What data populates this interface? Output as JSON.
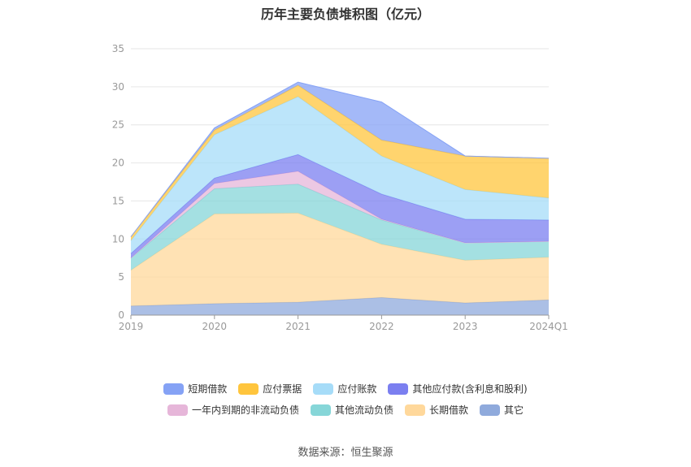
{
  "chart_data": {
    "type": "area",
    "title": "历年主要负债堆积图（亿元）",
    "categories": [
      "2019",
      "2020",
      "2021",
      "2022",
      "2023",
      "2024Q1"
    ],
    "ylim": [
      0,
      35
    ],
    "yticks": [
      0,
      5,
      10,
      15,
      20,
      25,
      30,
      35
    ],
    "stacked": true,
    "grid": true,
    "legend_position": "bottom",
    "series": [
      {
        "name": "其它",
        "color": "#8faadc",
        "values": [
          1.2,
          1.5,
          1.7,
          2.3,
          1.6,
          2.0
        ]
      },
      {
        "name": "长期借款",
        "color": "#ffd89b",
        "values": [
          4.7,
          11.8,
          11.7,
          7.0,
          5.6,
          5.6
        ]
      },
      {
        "name": "其他流动负债",
        "color": "#86d6d8",
        "values": [
          1.6,
          3.3,
          3.8,
          3.2,
          2.3,
          2.1
        ]
      },
      {
        "name": "一年内到期的非流动负债",
        "color": "#e6b6d9",
        "values": [
          0.0,
          0.7,
          1.7,
          0.1,
          0.0,
          0.0
        ]
      },
      {
        "name": "其他应付款(含利息和股利)",
        "color": "#7b7ff0",
        "values": [
          0.6,
          0.7,
          2.2,
          3.3,
          3.1,
          2.8
        ]
      },
      {
        "name": "应付账款",
        "color": "#a6dcf8",
        "values": [
          1.7,
          5.7,
          7.6,
          5.0,
          3.9,
          2.9
        ]
      },
      {
        "name": "应付票据",
        "color": "#ffc53d",
        "values": [
          0.5,
          0.6,
          1.5,
          2.1,
          4.4,
          5.2
        ]
      },
      {
        "name": "短期借款",
        "color": "#85a2f5",
        "values": [
          0.0,
          0.3,
          0.4,
          5.0,
          0.0,
          0.0
        ]
      }
    ]
  },
  "legend": {
    "row1": [
      {
        "label": "短期借款",
        "color": "#85a2f5"
      },
      {
        "label": "应付票据",
        "color": "#ffc53d"
      },
      {
        "label": "应付账款",
        "color": "#a6dcf8"
      },
      {
        "label": "其他应付款(含利息和股利)",
        "color": "#7b7ff0"
      }
    ],
    "row2": [
      {
        "label": "一年内到期的非流动负债",
        "color": "#e6b6d9"
      },
      {
        "label": "其他流动负债",
        "color": "#86d6d8"
      },
      {
        "label": "长期借款",
        "color": "#ffd89b"
      },
      {
        "label": "其它",
        "color": "#8faadc"
      }
    ]
  },
  "source": "数据来源：恒生聚源"
}
